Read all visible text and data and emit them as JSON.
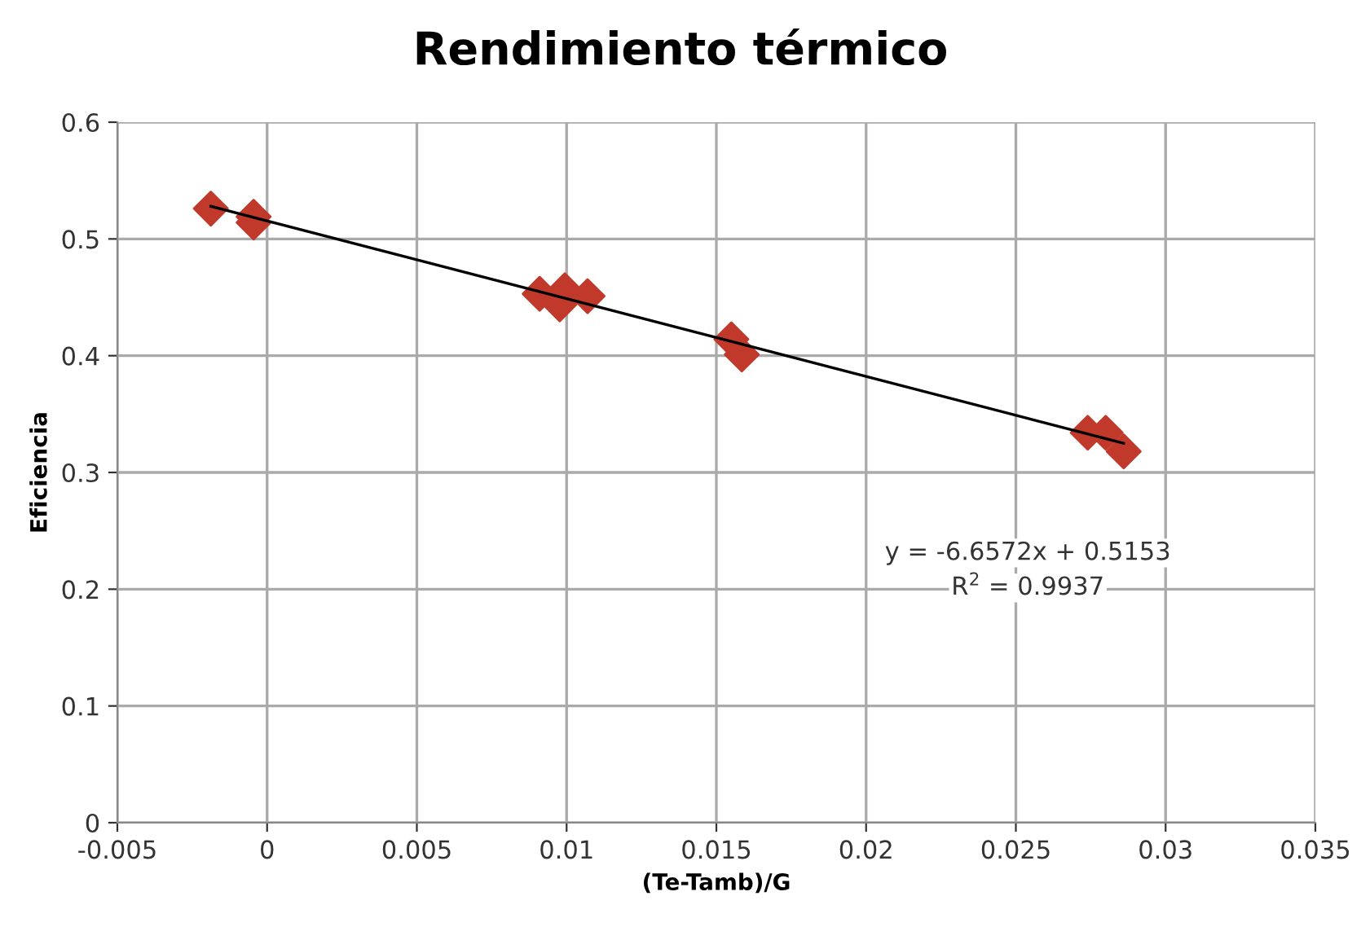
{
  "chart_data": {
    "type": "scatter",
    "title": "Rendimiento térmico",
    "xlabel": "(Te-Tamb)/G",
    "ylabel": "Eficiencia",
    "series": [
      {
        "color": "#c0392b",
        "marker": "diamond",
        "x": [
          -0.00188,
          -0.00045,
          -0.00045,
          0.0091,
          0.00977,
          0.00994,
          0.0107,
          0.0155,
          0.01585,
          0.0274,
          0.028,
          0.0286
        ],
        "values": [
          0.526,
          0.519,
          0.514,
          0.453,
          0.444,
          0.456,
          0.451,
          0.414,
          0.401,
          0.334,
          0.334,
          0.318
        ]
      },
      {
        "type": "line",
        "color": "#000000",
        "marker": "none",
        "line_style": "solid",
        "x": [
          -0.00188,
          0.0286
        ],
        "values": [
          0.528,
          0.325
        ]
      }
    ],
    "annotations": [
      "y = -6.6572x + 0.5153",
      "R$^{2}$ = 0.9937"
    ],
    "xlim": [
      -0.005,
      0.035
    ],
    "xticks": [
      -0.005,
      0,
      0.005,
      0.01,
      0.015,
      0.02,
      0.025,
      0.03,
      0.035
    ],
    "ylim": [
      0,
      0.6
    ],
    "yticks": [
      0,
      0.1,
      0.2,
      0.3,
      0.4,
      0.5,
      0.6
    ],
    "grid": true,
    "legend": false
  }
}
